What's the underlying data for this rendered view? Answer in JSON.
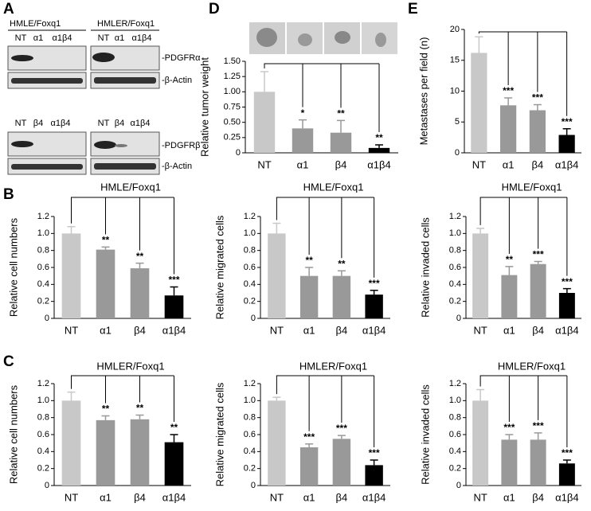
{
  "blots": {
    "panel": "A",
    "top": {
      "left_title": "HMLE/Foxq1",
      "right_title": "HMLER/Foxq1",
      "left_lanes": [
        "NT",
        "α1",
        "α1β4"
      ],
      "right_lanes": [
        "NT",
        "α1",
        "α1β4"
      ],
      "protein": "-PDGFRα",
      "loading": "-β-Actin"
    },
    "bottom": {
      "left_lanes": [
        "NT",
        "β4",
        "α1β4"
      ],
      "right_lanes": [
        "NT",
        "β4",
        "α1β4"
      ],
      "protein": "-PDGFRβ",
      "loading": "-β-Actin"
    }
  },
  "chart_data": [
    {
      "type": "bar",
      "panel": "D",
      "ylabel": "Relative tumor weight",
      "categories": [
        "NT",
        "α1",
        "β4",
        "α1β4"
      ],
      "values": [
        1.0,
        0.4,
        0.33,
        0.08
      ],
      "errors": [
        0.33,
        0.14,
        0.2,
        0.05
      ],
      "significance": [
        "*",
        "**",
        "**"
      ],
      "colors": [
        "#c8c8c8",
        "#999999",
        "#999999",
        "#000000"
      ],
      "ylim": [
        0,
        1.5
      ],
      "yticks": [
        0,
        0.25,
        {
          "value": 0.5,
          "label": "0.50"
        },
        0.75,
        {
          "value": 1,
          "label": "1.00"
        },
        1.25,
        {
          "value": 1.5,
          "label": "1.50"
        }
      ]
    },
    {
      "type": "bar",
      "panel": "E",
      "ylabel": "Metastases per field (n)",
      "categories": [
        "NT",
        "α1",
        "β4",
        "α1β4"
      ],
      "values": [
        16.2,
        7.7,
        6.9,
        2.9
      ],
      "errors": [
        2.6,
        1.2,
        0.9,
        1.0
      ],
      "significance": [
        "***",
        "***",
        "***"
      ],
      "colors": [
        "#c8c8c8",
        "#999999",
        "#999999",
        "#000000"
      ],
      "ylim": [
        0,
        20
      ],
      "yticks": [
        0,
        5,
        10,
        15,
        20
      ]
    },
    {
      "type": "bar",
      "panel": "B",
      "title": "HMLE/Foxq1",
      "ylabel": "Relative cell numbers",
      "categories": [
        "NT",
        "α1",
        "β4",
        "α1β4"
      ],
      "values": [
        1.0,
        0.81,
        0.59,
        0.27
      ],
      "errors": [
        0.08,
        0.03,
        0.06,
        0.1
      ],
      "significance": [
        "**",
        "**",
        "***"
      ],
      "colors": [
        "#c8c8c8",
        "#999999",
        "#999999",
        "#000000"
      ],
      "ylim": [
        0,
        1.2
      ],
      "yticks": [
        0,
        0.2,
        0.4,
        0.6,
        0.8,
        {
          "value": 1,
          "label": "1.0"
        },
        1.2
      ]
    },
    {
      "type": "bar",
      "title": "HMLE/Foxq1",
      "ylabel": "Relative migrated cells",
      "categories": [
        "NT",
        "α1",
        "β4",
        "α1β4"
      ],
      "values": [
        1.0,
        0.5,
        0.5,
        0.28
      ],
      "errors": [
        0.12,
        0.1,
        0.06,
        0.05
      ],
      "significance": [
        "**",
        "**",
        "***"
      ],
      "colors": [
        "#c8c8c8",
        "#999999",
        "#999999",
        "#000000"
      ],
      "ylim": [
        0,
        1.2
      ],
      "yticks": [
        0,
        0.2,
        0.4,
        0.6,
        0.8,
        {
          "value": 1,
          "label": "1.0"
        },
        1.2
      ]
    },
    {
      "type": "bar",
      "title": "HMLE/Foxq1",
      "ylabel": "Relative invaded cells",
      "categories": [
        "NT",
        "α1",
        "β4",
        "α1β4"
      ],
      "values": [
        1.0,
        0.51,
        0.64,
        0.3
      ],
      "errors": [
        0.06,
        0.1,
        0.03,
        0.05
      ],
      "significance": [
        "**",
        "***",
        "***"
      ],
      "colors": [
        "#c8c8c8",
        "#999999",
        "#999999",
        "#000000"
      ],
      "ylim": [
        0,
        1.2
      ],
      "yticks": [
        0,
        0.2,
        0.4,
        0.6,
        0.8,
        {
          "value": 1,
          "label": "1.0"
        },
        1.2
      ]
    },
    {
      "type": "bar",
      "panel": "C",
      "title": "HMLER/Foxq1",
      "ylabel": "Relative cell numbers",
      "categories": [
        "NT",
        "α1",
        "β4",
        "α1β4"
      ],
      "values": [
        1.0,
        0.77,
        0.78,
        0.51
      ],
      "errors": [
        0.1,
        0.05,
        0.05,
        0.09
      ],
      "significance": [
        "**",
        "**",
        "**"
      ],
      "colors": [
        "#c8c8c8",
        "#999999",
        "#999999",
        "#000000"
      ],
      "ylim": [
        0,
        1.2
      ],
      "yticks": [
        0,
        0.2,
        0.4,
        0.6,
        0.8,
        {
          "value": 1,
          "label": "1.0"
        },
        1.2
      ]
    },
    {
      "type": "bar",
      "title": "HMLER/Foxq1",
      "ylabel": "Relative migrated cells",
      "categories": [
        "NT",
        "α1",
        "β4",
        "α1β4"
      ],
      "values": [
        1.0,
        0.45,
        0.55,
        0.24
      ],
      "errors": [
        0.04,
        0.04,
        0.04,
        0.06
      ],
      "significance": [
        "***",
        "***",
        "***"
      ],
      "colors": [
        "#c8c8c8",
        "#999999",
        "#999999",
        "#000000"
      ],
      "ylim": [
        0,
        1.2
      ],
      "yticks": [
        0,
        0.2,
        0.4,
        0.6,
        0.8,
        {
          "value": 1,
          "label": "1.0"
        },
        1.2
      ]
    },
    {
      "type": "bar",
      "title": "HMLER/Foxq1",
      "ylabel": "Relative invaded cells",
      "categories": [
        "NT",
        "α1",
        "β4",
        "α1β4"
      ],
      "values": [
        1.0,
        0.54,
        0.54,
        0.26
      ],
      "errors": [
        0.13,
        0.06,
        0.08,
        0.04
      ],
      "significance": [
        "***",
        "***",
        "***"
      ],
      "colors": [
        "#c8c8c8",
        "#999999",
        "#999999",
        "#000000"
      ],
      "ylim": [
        0,
        1.2
      ],
      "yticks": [
        0,
        0.2,
        0.4,
        0.6,
        0.8,
        {
          "value": 1,
          "label": "1.0"
        },
        1.2
      ]
    }
  ]
}
